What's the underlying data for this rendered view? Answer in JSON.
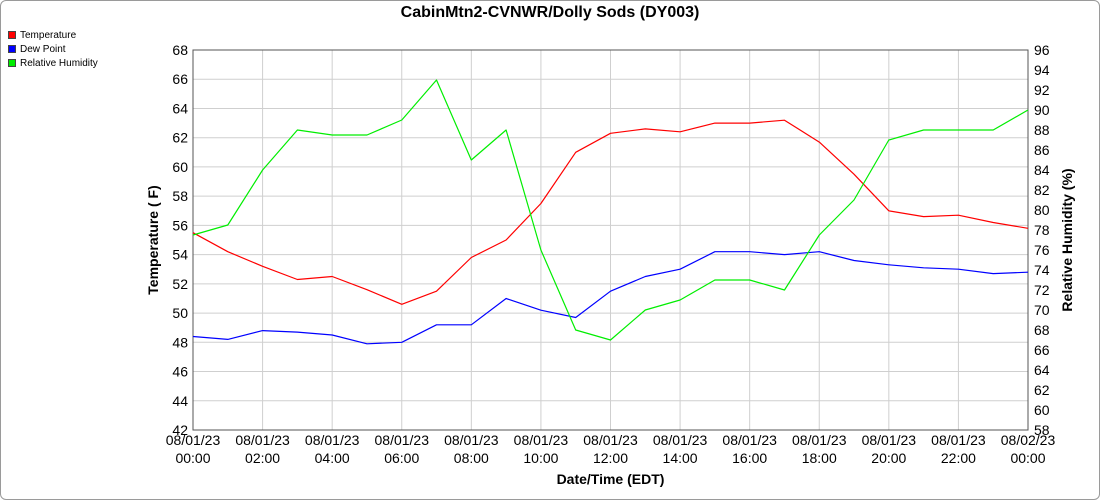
{
  "title": "CabinMtn2-CVNWR/Dolly Sods (DY003)",
  "chart_data": {
    "type": "line",
    "title": "CabinMtn2-CVNWR/Dolly Sods (DY003)",
    "xlabel": "Date/Time (EDT)",
    "ylabel": "Temperature ( F)",
    "y2label": "Relative Humidity (%)",
    "ylim": [
      42,
      68
    ],
    "y2lim": [
      58,
      96
    ],
    "yticks": [
      "42",
      "44",
      "46",
      "48",
      "50",
      "52",
      "54",
      "56",
      "58",
      "60",
      "62",
      "64",
      "66",
      "68"
    ],
    "y2ticks": [
      "58",
      "60",
      "62",
      "64",
      "66",
      "68",
      "70",
      "72",
      "74",
      "76",
      "78",
      "80",
      "82",
      "84",
      "86",
      "88",
      "90",
      "92",
      "94",
      "96"
    ],
    "xticks": [
      [
        "08/01/23",
        "00:00"
      ],
      [
        "08/01/23",
        "02:00"
      ],
      [
        "08/01/23",
        "04:00"
      ],
      [
        "08/01/23",
        "06:00"
      ],
      [
        "08/01/23",
        "08:00"
      ],
      [
        "08/01/23",
        "10:00"
      ],
      [
        "08/01/23",
        "12:00"
      ],
      [
        "08/01/23",
        "14:00"
      ],
      [
        "08/01/23",
        "16:00"
      ],
      [
        "08/01/23",
        "18:00"
      ],
      [
        "08/01/23",
        "20:00"
      ],
      [
        "08/01/23",
        "22:00"
      ],
      [
        "08/02/23",
        "00:00"
      ]
    ],
    "x_hours": [
      0,
      1,
      2,
      3,
      4,
      5,
      6,
      7,
      8,
      9,
      10,
      11,
      12,
      13,
      14,
      15,
      16,
      17,
      18,
      19,
      20,
      21,
      22,
      23,
      24
    ],
    "grid": true,
    "legend_placement": "top-left",
    "series": [
      {
        "name": "Temperature",
        "axis": "left",
        "color": "#ff0000",
        "values": [
          55.5,
          54.2,
          53.2,
          52.3,
          52.5,
          51.6,
          50.6,
          51.5,
          53.8,
          55.0,
          57.5,
          61.0,
          62.3,
          62.6,
          62.4,
          63.0,
          63.0,
          63.2,
          61.7,
          59.5,
          57.0,
          56.6,
          56.7,
          56.2,
          55.8
        ]
      },
      {
        "name": "Dew Point",
        "axis": "left",
        "color": "#0000ff",
        "values": [
          48.4,
          48.2,
          48.8,
          48.7,
          48.5,
          47.9,
          48.0,
          49.2,
          49.2,
          51.0,
          50.2,
          49.7,
          51.5,
          52.5,
          53.0,
          54.2,
          54.2,
          54.0,
          54.2,
          53.6,
          53.3,
          53.1,
          53.0,
          52.7,
          52.8
        ]
      },
      {
        "name": "Relative Humidity",
        "axis": "right",
        "color": "#00ee00",
        "values": [
          77.5,
          78.5,
          84.0,
          88.0,
          87.5,
          87.5,
          89.0,
          93.0,
          85.0,
          88.0,
          76.0,
          68.0,
          67.0,
          70.0,
          71.0,
          73.0,
          73.0,
          72.0,
          77.5,
          81.0,
          87.0,
          88.0,
          88.0,
          88.0,
          90.0
        ]
      }
    ]
  }
}
